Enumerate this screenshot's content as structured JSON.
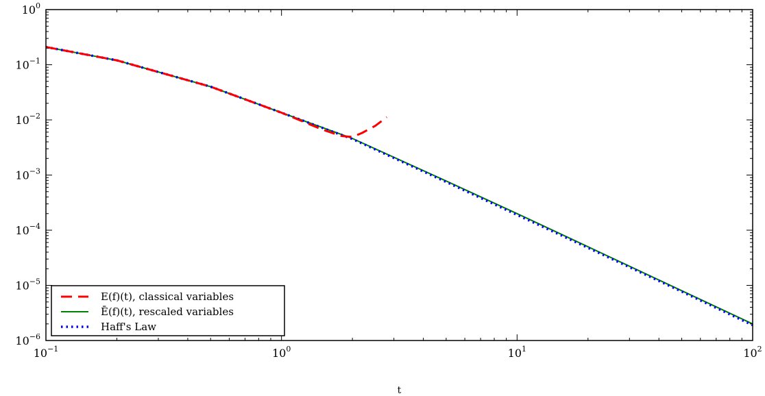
{
  "chart_data": {
    "type": "line",
    "xlabel": "t",
    "ylabel": "",
    "xscale": "log",
    "yscale": "log",
    "xlim": [
      0.1,
      100
    ],
    "ylim": [
      1e-06,
      1
    ],
    "grid": false,
    "legend_position": "lower-left",
    "x_ticks": [
      {
        "value": 0.1,
        "base": "10",
        "exp": "−1"
      },
      {
        "value": 1,
        "base": "10",
        "exp": "0"
      },
      {
        "value": 10,
        "base": "10",
        "exp": "1"
      },
      {
        "value": 100,
        "base": "10",
        "exp": "2"
      }
    ],
    "y_ticks": [
      {
        "value": 1e-06,
        "base": "10",
        "exp": "−6"
      },
      {
        "value": 1e-05,
        "base": "10",
        "exp": "−5"
      },
      {
        "value": 0.0001,
        "base": "10",
        "exp": "−4"
      },
      {
        "value": 0.001,
        "base": "10",
        "exp": "−3"
      },
      {
        "value": 0.01,
        "base": "10",
        "exp": "−2"
      },
      {
        "value": 0.1,
        "base": "10",
        "exp": "−1"
      },
      {
        "value": 1,
        "base": "10",
        "exp": "0"
      }
    ],
    "series": [
      {
        "name": "E(f)(t), classical variables",
        "color": "#ff0000",
        "style": "dashed",
        "x": [
          0.1,
          0.2,
          0.5,
          1.0,
          1.5,
          1.8,
          2.0,
          2.2,
          2.5,
          2.8
        ],
        "y": [
          0.21,
          0.12,
          0.04,
          0.0135,
          0.0066,
          0.0051,
          0.0049,
          0.0058,
          0.0078,
          0.0112
        ]
      },
      {
        "name": "Ē(f)(t), rescaled variables",
        "color": "#008000",
        "style": "solid",
        "x": [
          0.1,
          0.2,
          0.5,
          1.0,
          2.0,
          5.0,
          10,
          20,
          50,
          100
        ],
        "y": [
          0.21,
          0.12,
          0.04,
          0.0135,
          0.0046,
          0.00078,
          0.0002,
          5e-05,
          8e-06,
          2e-06
        ]
      },
      {
        "name": "Haff's Law",
        "color": "#0000ff",
        "style": "dotted",
        "x": [
          0.1,
          0.2,
          0.5,
          1.0,
          2.0,
          5.0,
          10,
          20,
          50,
          100
        ],
        "y": [
          0.21,
          0.12,
          0.04,
          0.0135,
          0.0045,
          0.00075,
          0.00019,
          4.8e-05,
          7.7e-06,
          1.9e-06
        ]
      }
    ]
  }
}
